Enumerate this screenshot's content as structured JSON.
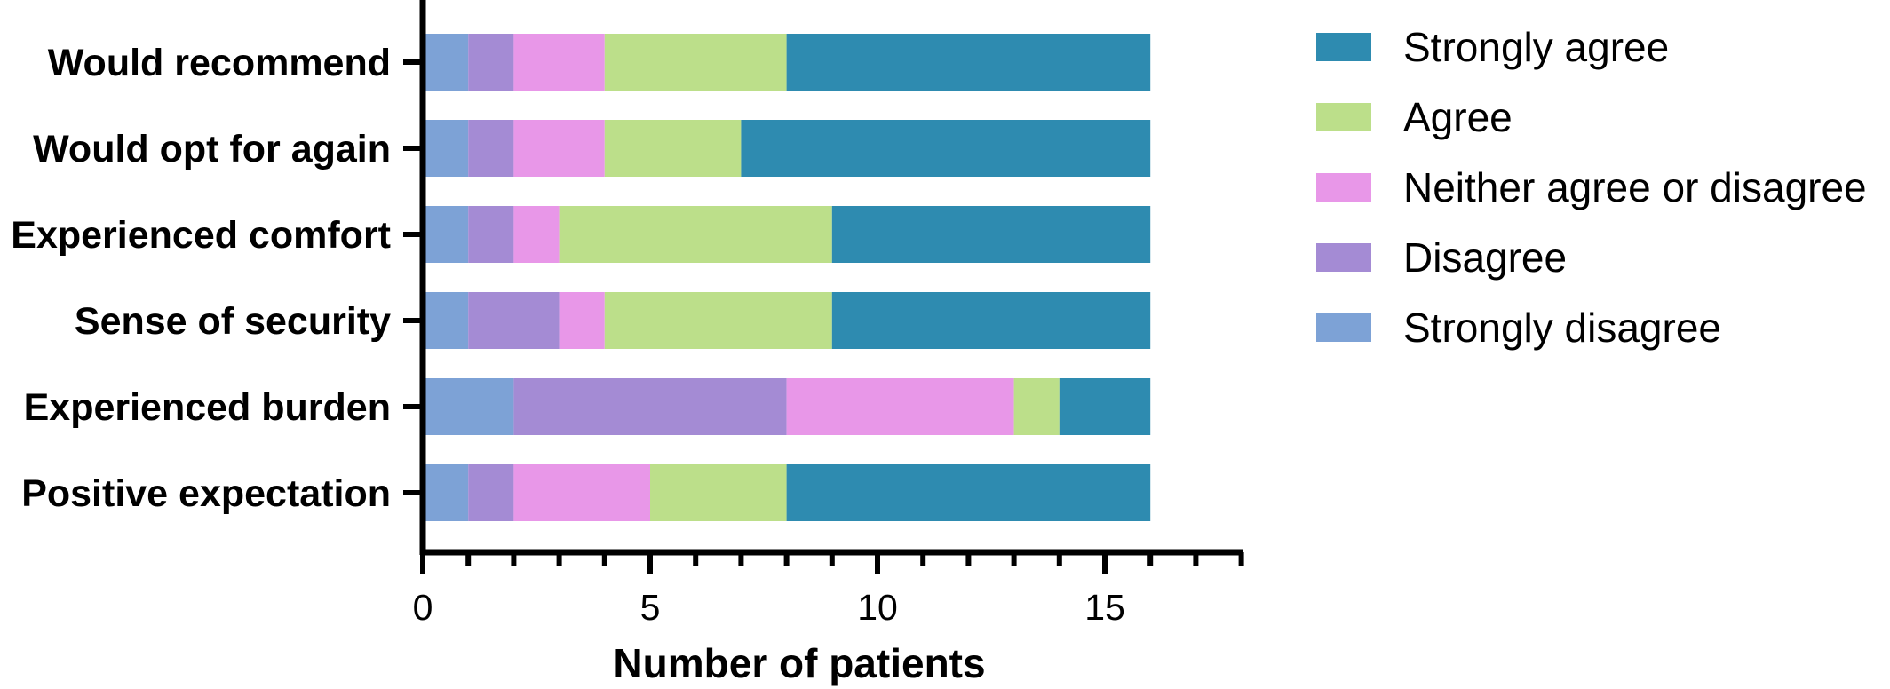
{
  "chart_data": {
    "type": "bar",
    "orientation": "horizontal",
    "stacked": true,
    "categories": [
      "Would recommend",
      "Would opt for again",
      "Experienced comfort",
      "Sense of security",
      "Experienced burden",
      "Positive expectation"
    ],
    "series": [
      {
        "name": "Strongly disagree",
        "color": "#7da2d6",
        "values": [
          1,
          1,
          1,
          1,
          2,
          1
        ]
      },
      {
        "name": "Disagree",
        "color": "#a48bd4",
        "values": [
          1,
          1,
          1,
          2,
          6,
          1
        ]
      },
      {
        "name": "Neither agree or disagree",
        "color": "#e897e8",
        "values": [
          2,
          2,
          1,
          1,
          5,
          3
        ]
      },
      {
        "name": "Agree",
        "color": "#bcdf8a",
        "values": [
          4,
          3,
          6,
          5,
          1,
          3
        ]
      },
      {
        "name": "Strongly agree",
        "color": "#2e8bb0",
        "values": [
          8,
          9,
          7,
          7,
          2,
          8
        ]
      }
    ],
    "legend_order": [
      "Strongly agree",
      "Agree",
      "Neither agree or disagree",
      "Disagree",
      "Strongly disagree"
    ],
    "legend_position": "right",
    "xlabel": "Number of patients",
    "ylabel": "",
    "xlim": [
      0,
      18
    ],
    "xticks_major": [
      0,
      5,
      10,
      15
    ],
    "xticks_minor_step": 1,
    "grid": false
  }
}
